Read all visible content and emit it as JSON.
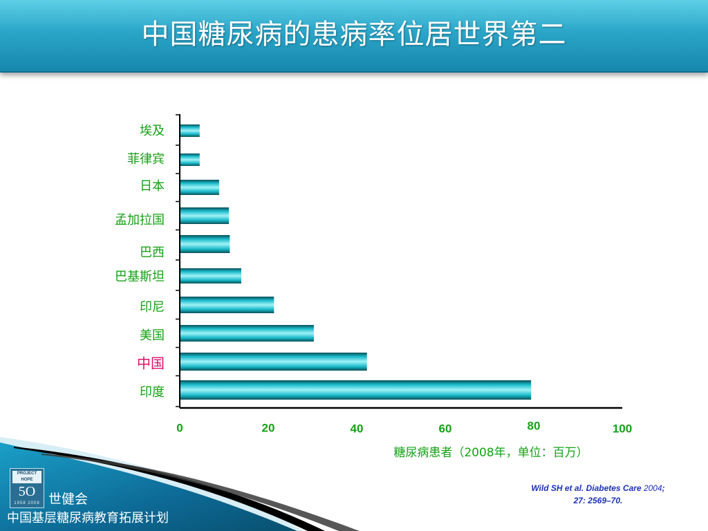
{
  "slide": {
    "title": "中国糖尿病的患病率位居世界第二"
  },
  "chart_data": {
    "type": "bar",
    "orientation": "horizontal",
    "categories": [
      "埃及",
      "菲律宾",
      "日本",
      "孟加拉国",
      "巴西",
      "巴基斯坦",
      "印尼",
      "美国",
      "中国",
      "印度"
    ],
    "values": [
      4.5,
      4.5,
      8.9,
      11.1,
      11.3,
      13.9,
      21.3,
      30.3,
      42.3,
      79.4
    ],
    "highlight_category": "中国",
    "x_ticks": [
      "0",
      "20",
      "40",
      "60",
      "80",
      "100"
    ],
    "xlim": [
      0,
      100
    ],
    "xlabel": "糖尿病患者（2008年，单位：百万）",
    "ylabel": "",
    "grid": false,
    "colors": {
      "bar": "#1fc6d6",
      "label": "#14a114",
      "highlight_label": "#e0106a"
    }
  },
  "footer": {
    "logo_top": "PROJECT HOPE",
    "logo_number": "5O",
    "logo_years": "1958 2008",
    "org_name": "世健会",
    "org_subtitle": "中国基层糖尿病教育拓展计划"
  },
  "citation": {
    "main": "Wild SH et al. Diabetes Care",
    "year": "2004",
    "sep": ";",
    "pages": "27: 2569–70."
  }
}
